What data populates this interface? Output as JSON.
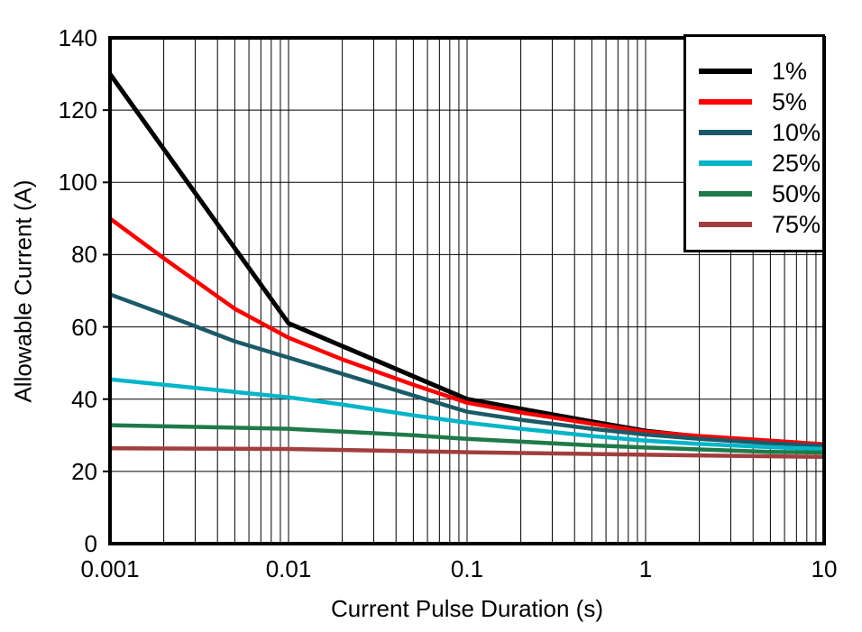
{
  "chart_data": {
    "type": "line",
    "title": "",
    "xlabel": "Current Pulse Duration (s)",
    "ylabel": "Allowable Current (A)",
    "x_scale": "log",
    "xlim": [
      0.001,
      10
    ],
    "ylim": [
      0,
      140
    ],
    "y_ticks": [
      0,
      20,
      40,
      60,
      80,
      100,
      120,
      140
    ],
    "x_ticks": [
      0.001,
      0.01,
      0.1,
      1,
      10
    ],
    "x_tick_labels": [
      "0.001",
      "0.01",
      "0.1",
      "1",
      "10"
    ],
    "grid": {
      "horizontal_major_step": 20,
      "vertical_log_minor": true,
      "color": "#000000"
    },
    "legend": {
      "position": "top-right-inside"
    },
    "series": [
      {
        "name": "1%",
        "color": "#000000",
        "points": [
          [
            0.001,
            130
          ],
          [
            0.01,
            61
          ],
          [
            0.1,
            40
          ],
          [
            0.2,
            37.3
          ],
          [
            0.5,
            33.8
          ],
          [
            1,
            31.2
          ],
          [
            2,
            29.6
          ],
          [
            5,
            28.1
          ],
          [
            10,
            27.2
          ]
        ]
      },
      {
        "name": "5%",
        "color": "#ff0000",
        "points": [
          [
            0.001,
            90
          ],
          [
            0.002,
            79
          ],
          [
            0.005,
            65
          ],
          [
            0.01,
            57
          ],
          [
            0.02,
            51
          ],
          [
            0.05,
            44
          ],
          [
            0.1,
            39
          ],
          [
            0.2,
            36.3
          ],
          [
            0.5,
            33.2
          ],
          [
            1,
            31
          ],
          [
            2,
            29.8
          ],
          [
            5,
            28.5
          ],
          [
            10,
            27.5
          ]
        ]
      },
      {
        "name": "10%",
        "color": "#1a5a68",
        "points": [
          [
            0.001,
            69
          ],
          [
            0.002,
            63.5
          ],
          [
            0.005,
            56
          ],
          [
            0.01,
            51.5
          ],
          [
            0.02,
            47
          ],
          [
            0.05,
            41
          ],
          [
            0.1,
            36.5
          ],
          [
            0.2,
            34.3
          ],
          [
            0.5,
            31.8
          ],
          [
            1,
            30.2
          ],
          [
            2,
            29
          ],
          [
            5,
            27.8
          ],
          [
            10,
            27
          ]
        ]
      },
      {
        "name": "25%",
        "color": "#00b5c8",
        "points": [
          [
            0.001,
            45.5
          ],
          [
            0.002,
            44
          ],
          [
            0.005,
            42
          ],
          [
            0.01,
            40.5
          ],
          [
            0.02,
            38.5
          ],
          [
            0.05,
            35.5
          ],
          [
            0.1,
            33.5
          ],
          [
            0.2,
            31.8
          ],
          [
            0.5,
            29.8
          ],
          [
            1,
            28.5
          ],
          [
            2,
            27.6
          ],
          [
            5,
            26.7
          ],
          [
            10,
            26.2
          ]
        ]
      },
      {
        "name": "50%",
        "color": "#1f7a4a",
        "points": [
          [
            0.001,
            32.8
          ],
          [
            0.01,
            31.8
          ],
          [
            0.05,
            30
          ],
          [
            0.1,
            29
          ],
          [
            0.5,
            27.2
          ],
          [
            1,
            26.6
          ],
          [
            5,
            25.4
          ],
          [
            10,
            25.2
          ]
        ]
      },
      {
        "name": "75%",
        "color": "#a23e3e",
        "points": [
          [
            0.001,
            26.4
          ],
          [
            0.01,
            26.2
          ],
          [
            0.1,
            25.3
          ],
          [
            1,
            24.6
          ],
          [
            10,
            24
          ]
        ]
      }
    ]
  },
  "layout_colors": {
    "background": "#ffffff",
    "axis": "#000000",
    "grid": "#000000",
    "text": "#000000"
  }
}
